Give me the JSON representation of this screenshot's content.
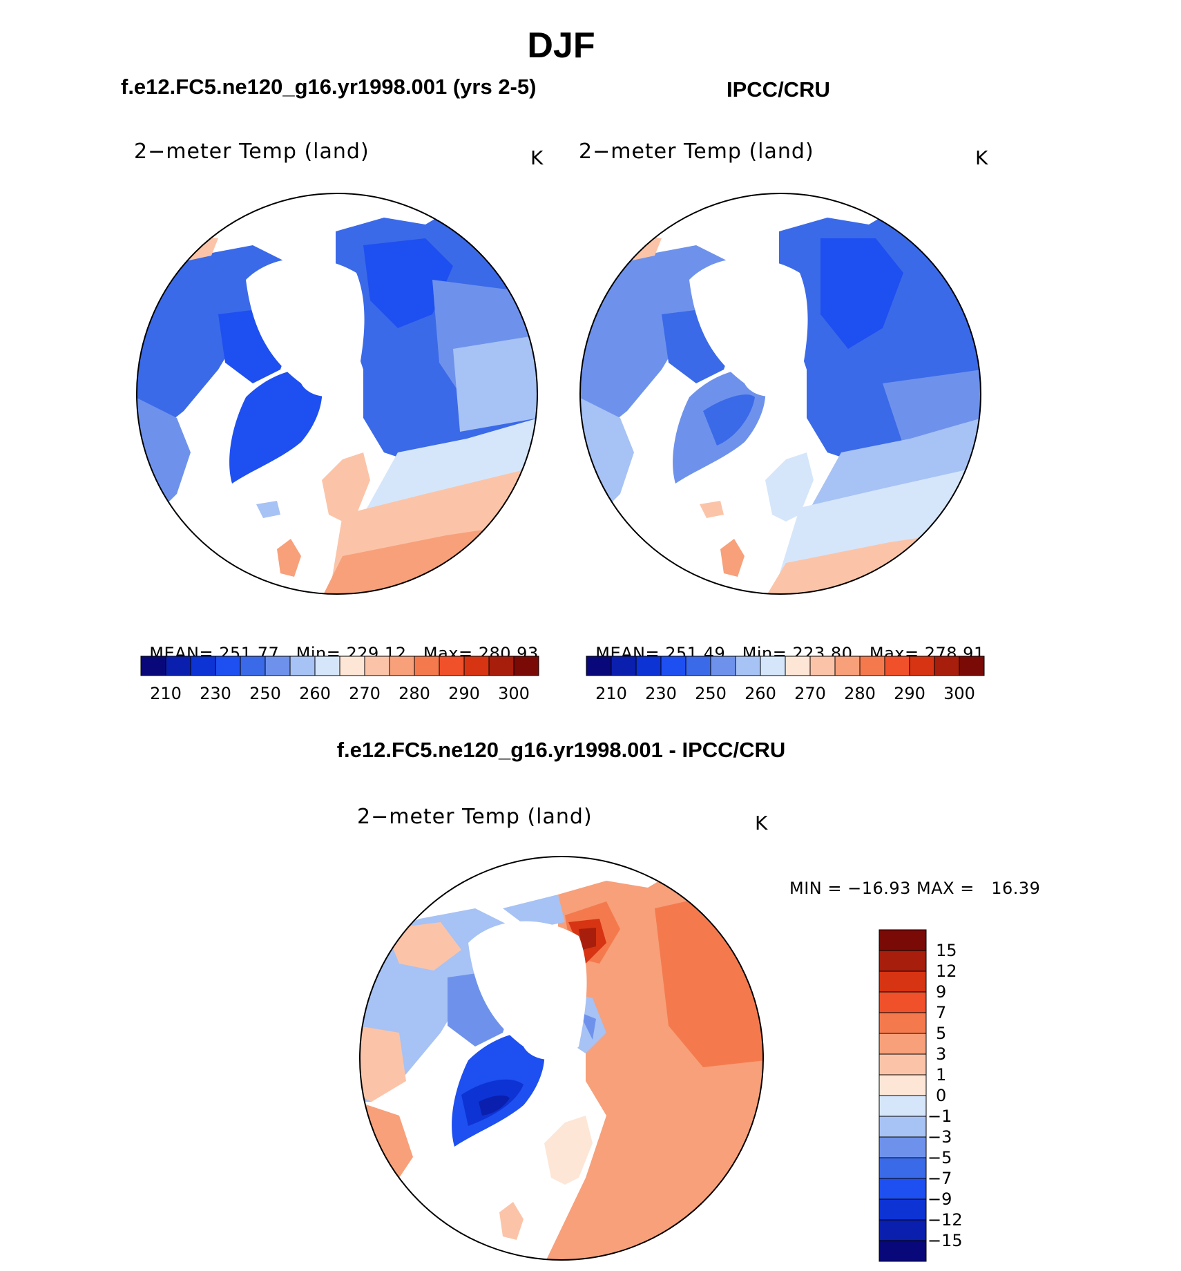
{
  "season": "DJF",
  "panels": {
    "model": {
      "header": "f.e12.FC5.ne120_g16.yr1998.001 (yrs 2-5)",
      "variable": "2−meter Temp (land)",
      "unit": "K",
      "stats": {
        "mean_label": "MEAN=",
        "mean": "251.77",
        "min_label": "Min=",
        "min": "229.12",
        "max_label": "Max=",
        "max": "280.93"
      }
    },
    "obs": {
      "header": "IPCC/CRU",
      "variable": "2−meter Temp (land)",
      "unit": "K",
      "stats": {
        "mean_label": "MEAN=",
        "mean": "251.49",
        "min_label": "Min=",
        "min": "223.80",
        "max_label": "Max=",
        "max": "278.91"
      }
    },
    "diff": {
      "header": "f.e12.FC5.ne120_g16.yr1998.001 - IPCC/CRU",
      "variable": "2−meter Temp (land)",
      "unit": "K",
      "range_text": "MIN = −16.93 MAX =   16.39"
    }
  },
  "colorbar_abs": {
    "colors": [
      "#08087a",
      "#0b1fae",
      "#0d33d4",
      "#1e4ff0",
      "#3b6ae8",
      "#6e92ec",
      "#a7c2f4",
      "#d5e6fb",
      "#fde6d6",
      "#fbc4a8",
      "#f7a07a",
      "#f47a4e",
      "#f0502a",
      "#d63412",
      "#a71e0c",
      "#7a0a06"
    ],
    "tick_labels": [
      "210",
      "230",
      "250",
      "260",
      "270",
      "280",
      "290",
      "300"
    ]
  },
  "colorbar_diff": {
    "colors": [
      "#7a0a06",
      "#a71e0c",
      "#d63412",
      "#f0502a",
      "#f47a4e",
      "#f7a07a",
      "#fbc4a8",
      "#fde6d6",
      "#d5e6fb",
      "#a7c2f4",
      "#6e92ec",
      "#3b6ae8",
      "#1e4ff0",
      "#0d33d4",
      "#0b1fae",
      "#08087a"
    ],
    "tick_labels": [
      "15",
      "12",
      "9",
      "7",
      "5",
      "3",
      "1",
      "0",
      "−1",
      "−3",
      "−5",
      "−7",
      "−9",
      "−12",
      "−15"
    ]
  }
}
